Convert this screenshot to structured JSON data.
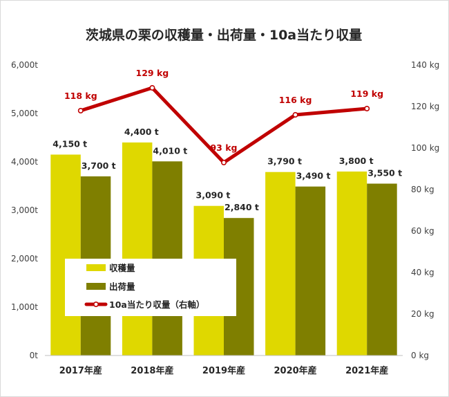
{
  "chart_data": {
    "type": "bar",
    "title": "茨城県の栗の収穫量・出荷量・10a当たり収量",
    "categories": [
      "2017年産",
      "2018年産",
      "2019年産",
      "2020年産",
      "2021年産"
    ],
    "series": [
      {
        "name": "収穫量",
        "type": "bar",
        "axis": "left",
        "color": "#dfd800",
        "values": [
          4150,
          4400,
          3090,
          3790,
          3800
        ],
        "labels": [
          "4,150 t",
          "4,400 t",
          "3,090 t",
          "3,790 t",
          "3,800 t"
        ]
      },
      {
        "name": "出荷量",
        "type": "bar",
        "axis": "left",
        "color": "#7f7f00",
        "values": [
          3700,
          4010,
          2840,
          3490,
          3550
        ],
        "labels": [
          "3,700 t",
          "4,010 t",
          "2,840 t",
          "3,490 t",
          "3,550 t"
        ]
      },
      {
        "name": "10a当たり収量（右軸）",
        "type": "line",
        "axis": "right",
        "color": "#c00000",
        "values": [
          118,
          129,
          93,
          116,
          119
        ],
        "labels": [
          "118 kg",
          "129 kg",
          "93 kg",
          "116 kg",
          "119 kg"
        ]
      }
    ],
    "y_left": {
      "min": 0,
      "max": 6000,
      "ticks": [
        "0t",
        "1,000t",
        "2,000t",
        "3,000t",
        "4,000t",
        "5,000t",
        "6,000t"
      ]
    },
    "y_right": {
      "min": 0,
      "max": 140,
      "ticks": [
        "0 kg",
        "20 kg",
        "40 kg",
        "60 kg",
        "80 kg",
        "100 kg",
        "120 kg",
        "140 kg"
      ]
    },
    "grid": false,
    "legend_position": "bottom-left-inside"
  }
}
